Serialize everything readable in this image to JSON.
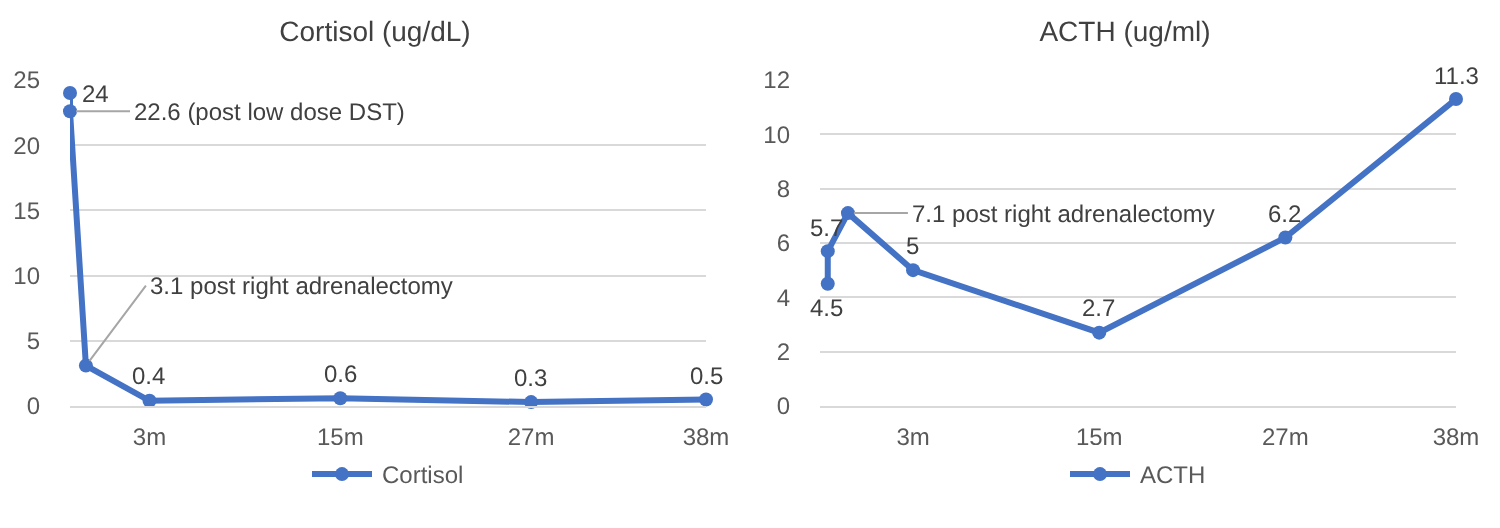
{
  "chart_data": [
    {
      "type": "line",
      "title": "Cortisol (ug/dL)",
      "x": [
        -2,
        -2,
        -1,
        3,
        15,
        27,
        38
      ],
      "xlim": [
        -2,
        38
      ],
      "xticks": [
        {
          "value": 3,
          "label": "3m"
        },
        {
          "value": 15,
          "label": "15m"
        },
        {
          "value": 27,
          "label": "27m"
        },
        {
          "value": 38,
          "label": "38m"
        }
      ],
      "ylim": [
        0,
        25
      ],
      "yticks": [
        0,
        5,
        10,
        15,
        20,
        25
      ],
      "grid": "y",
      "legend": "bottom",
      "marker": "circle",
      "series": [
        {
          "name": "Cortisol",
          "color": "#4472c4",
          "values": [
            24,
            22.6,
            3.1,
            0.4,
            0.6,
            0.3,
            0.5
          ],
          "value_labels": [
            "24",
            "22.6 (post low dose DST)",
            "3.1 post right adrenalectomy",
            "0.4",
            "0.6",
            "0.3",
            "0.5"
          ]
        }
      ]
    },
    {
      "type": "line",
      "title": "ACTH (ug/ml)",
      "x": [
        -2.5,
        -2.5,
        -1.2,
        3,
        15,
        27,
        38
      ],
      "xlim": [
        -3,
        38
      ],
      "xticks": [
        {
          "value": 3,
          "label": "3m"
        },
        {
          "value": 15,
          "label": "15m"
        },
        {
          "value": 27,
          "label": "27m"
        },
        {
          "value": 38,
          "label": "38m"
        }
      ],
      "ylim": [
        0,
        12
      ],
      "yticks": [
        0,
        2,
        4,
        6,
        8,
        10,
        12
      ],
      "grid": "y",
      "legend": "bottom",
      "marker": "circle",
      "series": [
        {
          "name": "ACTH",
          "color": "#4472c4",
          "values": [
            4.5,
            5.7,
            7.1,
            5,
            2.7,
            6.2,
            11.3
          ],
          "value_labels": [
            "4.5",
            "5.7",
            "7.1 post right adrenalectomy",
            "5",
            "2.7",
            "6.2",
            "11.3"
          ]
        }
      ]
    }
  ]
}
